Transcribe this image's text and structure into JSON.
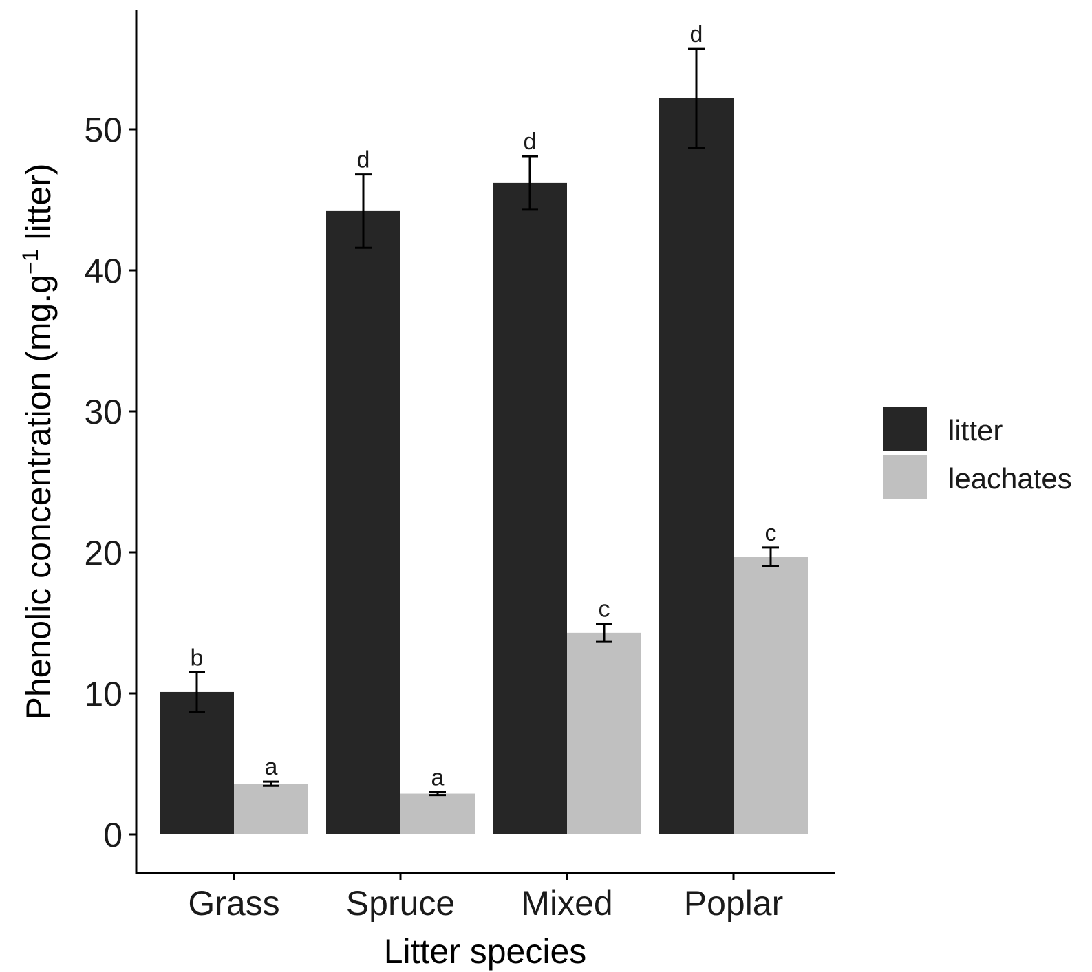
{
  "chart_data": {
    "type": "bar",
    "title": "",
    "xlabel": "Litter species",
    "ylabel": {
      "main": "Phenolic concentration (mg.g",
      "superscript": "−1",
      "tail": " litter)"
    },
    "categories": [
      "Grass",
      "Spruce",
      "Mixed",
      "Poplar"
    ],
    "ylim": [
      -2.8,
      58.5
    ],
    "yticks": [
      0,
      10,
      20,
      30,
      40,
      50
    ],
    "grid": false,
    "legend_position": "right",
    "series": [
      {
        "name": "litter",
        "color": "#262626",
        "values": [
          10.1,
          44.2,
          46.2,
          52.2
        ],
        "errors": [
          1.4,
          2.6,
          1.9,
          3.5
        ],
        "letters": [
          "b",
          "d",
          "d",
          "d"
        ]
      },
      {
        "name": "leachates",
        "color": "#c0c0c0",
        "values": [
          3.6,
          2.9,
          14.3,
          19.7
        ],
        "errors": [
          0.15,
          0.1,
          0.65,
          0.65
        ],
        "letters": [
          "a",
          "a",
          "c",
          "c"
        ]
      }
    ]
  }
}
